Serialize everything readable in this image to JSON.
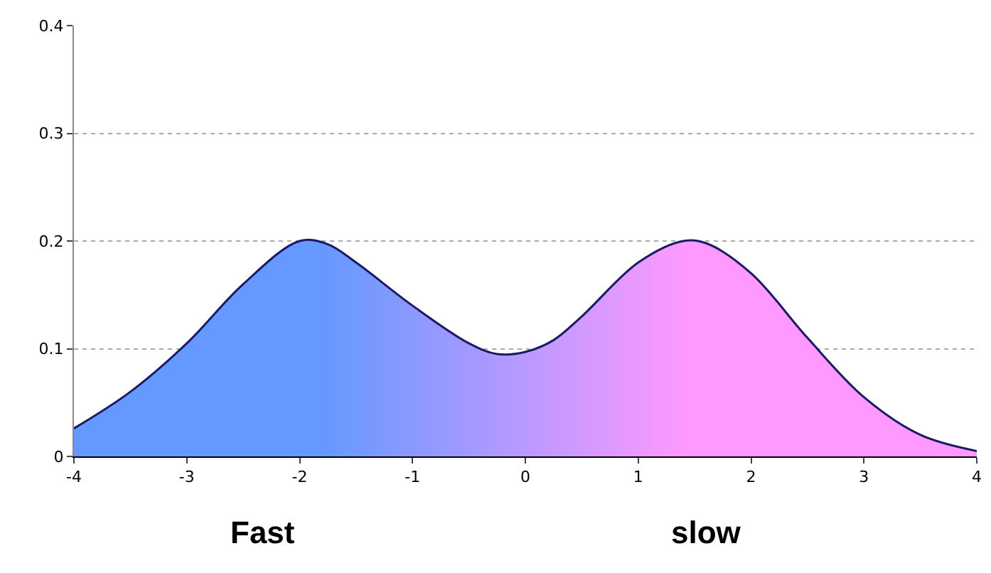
{
  "chart_data": {
    "type": "area",
    "x": [
      -4,
      -3.5,
      -3,
      -2.5,
      -2,
      -1.75,
      -1.5,
      -1,
      -0.5,
      -0.25,
      0,
      0.25,
      0.5,
      1,
      1.4,
      1.6,
      2,
      2.5,
      3,
      3.5,
      4
    ],
    "series": [
      {
        "color": "#1a1a66",
        "values": [
          0.026,
          0.06,
          0.105,
          0.16,
          0.2,
          0.197,
          0.18,
          0.14,
          0.105,
          0.095,
          0.097,
          0.108,
          0.13,
          0.18,
          0.2,
          0.198,
          0.17,
          0.11,
          0.055,
          0.02,
          0.005
        ]
      }
    ],
    "xlim": [
      -4,
      4
    ],
    "xticks": [
      -4,
      -3,
      -2,
      -1,
      0,
      1,
      2,
      3,
      4
    ],
    "ylim": [
      0,
      0.4
    ],
    "yticks": [
      0,
      0.1,
      0.2,
      0.3,
      0.4
    ],
    "grid": "y",
    "annotations": [
      "Fast",
      "slow"
    ]
  }
}
